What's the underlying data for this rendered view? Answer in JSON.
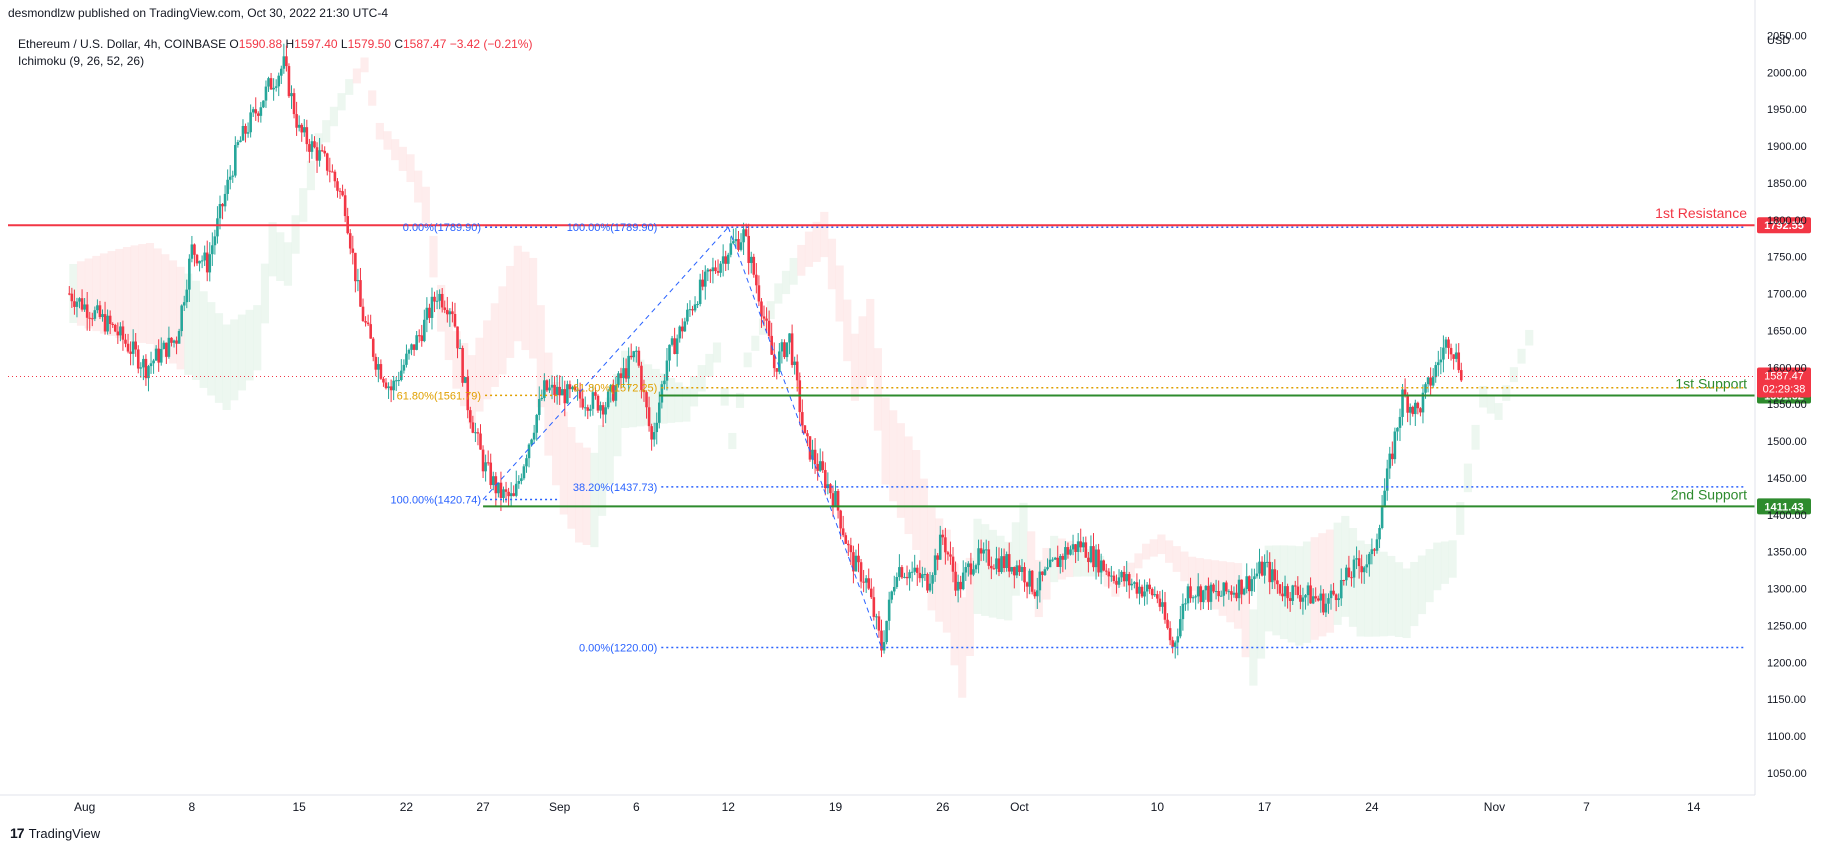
{
  "header": {
    "published": "desmondlzw published on TradingView.com, Oct 30, 2022 21:30 UTC-4"
  },
  "legend": {
    "symbol": "Ethereum / U.S. Dollar, 4h, COINBASE",
    "o_label": "O",
    "o": "1590.88",
    "h_label": "H",
    "h": "1597.40",
    "l_label": "L",
    "l": "1579.50",
    "c_label": "C",
    "c": "1587.47",
    "change": "−3.42 (−0.21%)",
    "indicator": "Ichimoku (9, 26, 52, 26)"
  },
  "footer": {
    "brand": "TradingView",
    "logo": "17"
  },
  "colors": {
    "up": "#26a69a",
    "down": "#f23645",
    "resistance": "#f23645",
    "support": "#2e8b2e",
    "fib": "#2962ff",
    "fib_orange": "#e0a000",
    "cloud_up": "#e6f4ea",
    "cloud_down": "#fde6e6"
  },
  "chart_data": {
    "type": "candlestick",
    "timeframe": "4h",
    "currency": "USD",
    "ylim": [
      1020,
      2060
    ],
    "y_ticks": [
      1050,
      1100,
      1150,
      1200,
      1250,
      1300,
      1350,
      1400,
      1450,
      1500,
      1550,
      1600,
      1650,
      1700,
      1750,
      1800,
      1850,
      1900,
      1950,
      2000,
      2050
    ],
    "x_ticks": [
      {
        "label": "Aug",
        "day": 1
      },
      {
        "label": "8",
        "day": 8
      },
      {
        "label": "15",
        "day": 15
      },
      {
        "label": "22",
        "day": 22
      },
      {
        "label": "27",
        "day": 27
      },
      {
        "label": "Sep",
        "day": 32
      },
      {
        "label": "6",
        "day": 37
      },
      {
        "label": "12",
        "day": 43
      },
      {
        "label": "19",
        "day": 50
      },
      {
        "label": "26",
        "day": 57
      },
      {
        "label": "Oct",
        "day": 62
      },
      {
        "label": "10",
        "day": 71
      },
      {
        "label": "17",
        "day": 78
      },
      {
        "label": "24",
        "day": 85
      },
      {
        "label": "Nov",
        "day": 93
      },
      {
        "label": "7",
        "day": 99
      },
      {
        "label": "14",
        "day": 106
      }
    ],
    "price_path": [
      [
        0,
        1700
      ],
      [
        3,
        1650
      ],
      [
        5,
        1600
      ],
      [
        7,
        1640
      ],
      [
        8,
        1760
      ],
      [
        9,
        1740
      ],
      [
        11,
        1900
      ],
      [
        13,
        1980
      ],
      [
        14,
        2010
      ],
      [
        15,
        1920
      ],
      [
        17,
        1870
      ],
      [
        18,
        1820
      ],
      [
        19,
        1680
      ],
      [
        20,
        1610
      ],
      [
        21,
        1570
      ],
      [
        23,
        1650
      ],
      [
        24,
        1700
      ],
      [
        25,
        1680
      ],
      [
        26,
        1550
      ],
      [
        27,
        1470
      ],
      [
        28,
        1430
      ],
      [
        29,
        1420
      ],
      [
        30,
        1500
      ],
      [
        31,
        1570
      ],
      [
        33,
        1560
      ],
      [
        35,
        1550
      ],
      [
        37,
        1620
      ],
      [
        38,
        1500
      ],
      [
        39,
        1610
      ],
      [
        41,
        1700
      ],
      [
        43,
        1760
      ],
      [
        44,
        1780
      ],
      [
        45,
        1700
      ],
      [
        46,
        1600
      ],
      [
        47,
        1640
      ],
      [
        48,
        1500
      ],
      [
        49,
        1460
      ],
      [
        50,
        1420
      ],
      [
        51,
        1340
      ],
      [
        52,
        1310
      ],
      [
        53,
        1220
      ],
      [
        54,
        1330
      ],
      [
        56,
        1310
      ],
      [
        57,
        1370
      ],
      [
        58,
        1300
      ],
      [
        59,
        1340
      ],
      [
        60,
        1340
      ],
      [
        62,
        1330
      ],
      [
        63,
        1300
      ],
      [
        65,
        1350
      ],
      [
        66,
        1360
      ],
      [
        67,
        1340
      ],
      [
        68,
        1320
      ],
      [
        70,
        1300
      ],
      [
        71,
        1290
      ],
      [
        72,
        1220
      ],
      [
        73,
        1300
      ],
      [
        75,
        1290
      ],
      [
        77,
        1310
      ],
      [
        78,
        1330
      ],
      [
        79,
        1300
      ],
      [
        81,
        1290
      ],
      [
        82,
        1280
      ],
      [
        84,
        1330
      ],
      [
        85,
        1340
      ],
      [
        86,
        1450
      ],
      [
        87,
        1560
      ],
      [
        88,
        1540
      ],
      [
        89,
        1590
      ],
      [
        90,
        1640
      ],
      [
        91,
        1587.47
      ]
    ],
    "last_price": "1587.47",
    "countdown": "02:29:38",
    "levels": [
      {
        "name": "1st Resistance",
        "price": 1792.55,
        "label": "1792.55",
        "color": "#f23645"
      },
      {
        "name": "1st Support",
        "price": 1561.62,
        "label": "1561.62",
        "color": "#2e8b2e"
      },
      {
        "name": "2nd Support",
        "price": 1411.43,
        "label": "1411.43",
        "color": "#2e8b2e"
      }
    ],
    "fib_labels": [
      {
        "text": "0.00%(1789.90)",
        "price": 1789.9,
        "day": 27
      },
      {
        "text": "100.00%(1789.90)",
        "price": 1789.9,
        "day": 38.5
      },
      {
        "text": "61.80%(1561.79)",
        "price": 1561.79,
        "day": 27
      },
      {
        "text": "61.80%(1572.25)",
        "price": 1572.25,
        "day": 38.5
      },
      {
        "text": "100.00%(1420.74)",
        "price": 1420.74,
        "day": 27
      },
      {
        "text": "38.20%(1437.73)",
        "price": 1437.73,
        "day": 38.5
      },
      {
        "text": "0.00%(1220.00)",
        "price": 1220.0,
        "day": 38.5
      }
    ]
  }
}
